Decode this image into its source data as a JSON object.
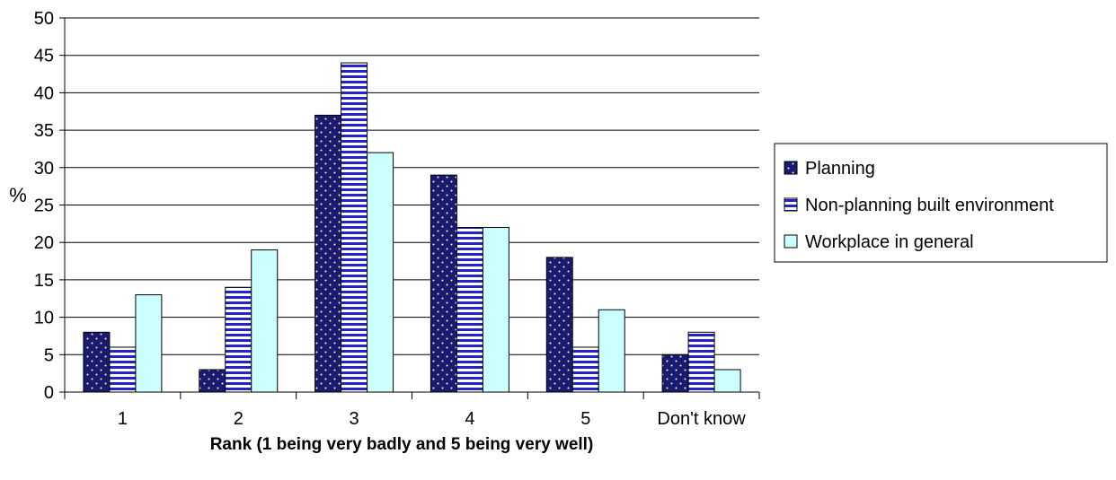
{
  "chart_data": {
    "type": "bar",
    "categories": [
      "1",
      "2",
      "3",
      "4",
      "5",
      "Don't know"
    ],
    "series": [
      {
        "name": "Planning",
        "values": [
          8,
          3,
          37,
          29,
          18,
          5
        ],
        "color": "#1a1a6e",
        "pattern": "dots"
      },
      {
        "name": "Non-planning built environment",
        "values": [
          6,
          14,
          44,
          22,
          6,
          8
        ],
        "color": "#2323c8",
        "pattern": "horizontal-stripes"
      },
      {
        "name": "Workplace in general",
        "values": [
          13,
          19,
          32,
          22,
          11,
          3
        ],
        "color": "#ccffff",
        "pattern": "solid"
      }
    ],
    "ylim": [
      0,
      50
    ],
    "yticks": [
      0,
      5,
      10,
      15,
      20,
      25,
      30,
      35,
      40,
      45,
      50
    ],
    "xlabel": "Rank (1 being very badly and 5 being very well)",
    "ylabel": "%",
    "grid": "horizontal",
    "legend_position": "right"
  }
}
